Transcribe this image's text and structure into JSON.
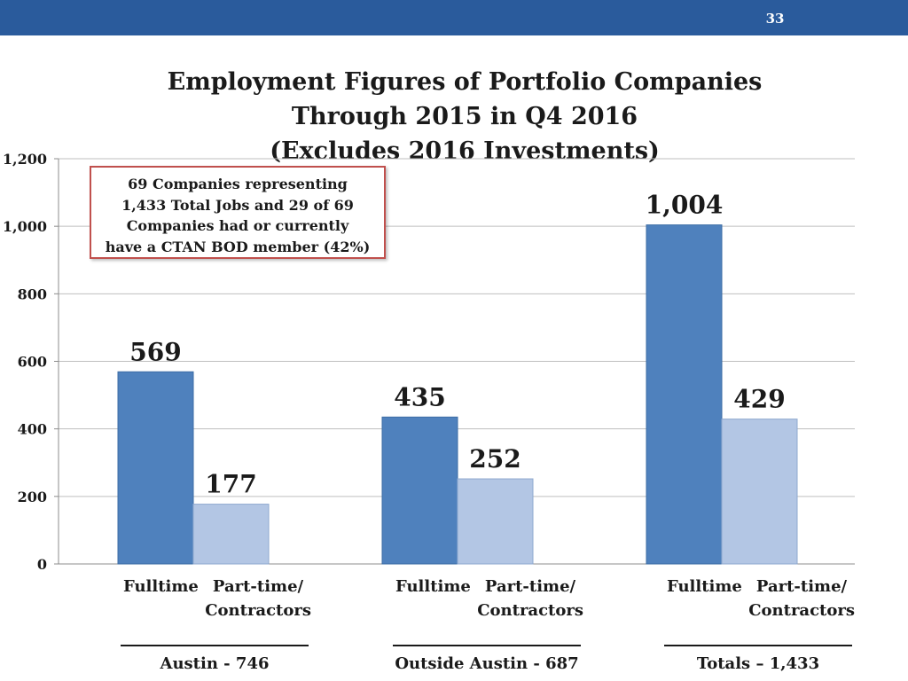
{
  "page_number": "33",
  "title_lines": [
    "Employment Figures of Portfolio Companies",
    "Through 2015 in Q4 2016",
    "(Excludes 2016 Investments)"
  ],
  "note_lines": [
    "69 Companies representing",
    "1,433 Total Jobs and 29 of 69",
    "Companies had or currently",
    "have a CTAN BOD member (42%)"
  ],
  "groups": [
    {
      "bar1_label": "Fulltime",
      "bar2_label_line1": "Part-time/",
      "bar2_label_line2": "Contractors",
      "group_label": "Austin - 746"
    },
    {
      "bar1_label": "Fulltime",
      "bar2_label_line1": "Part-time/",
      "bar2_label_line2": "Contractors",
      "group_label": "Outside Austin - 687"
    },
    {
      "bar1_label": "Fulltime",
      "bar2_label_line1": "Part-time/",
      "bar2_label_line2": "Contractors",
      "group_label": "Totals – 1,433"
    }
  ],
  "colors": {
    "header_bar": "#2a5b9c",
    "fulltime": "#4f81bd",
    "parttime": "#b3c6e4",
    "gridline": "#bfbfbf",
    "note_border": "#c0504d"
  },
  "chart_data": {
    "type": "bar",
    "title": "Employment Figures of Portfolio Companies Through 2015 in Q4 2016 (Excludes 2016 Investments)",
    "categories": [
      "Austin - 746",
      "Outside Austin - 687",
      "Totals – 1,433"
    ],
    "series": [
      {
        "values": [
          569,
          435,
          1004
        ],
        "data_labels": [
          "569",
          "435",
          "1,004"
        ]
      },
      {
        "values": [
          177,
          252,
          429
        ],
        "data_labels": [
          "177",
          "252",
          "429"
        ]
      }
    ],
    "ylim": [
      0,
      1200
    ],
    "yticks": [
      0,
      200,
      400,
      600,
      800,
      1000,
      1200
    ],
    "ytick_labels": [
      "0",
      "200",
      "400",
      "600",
      "800",
      "1,000",
      "1,200"
    ],
    "grid": true,
    "legend": "none"
  }
}
